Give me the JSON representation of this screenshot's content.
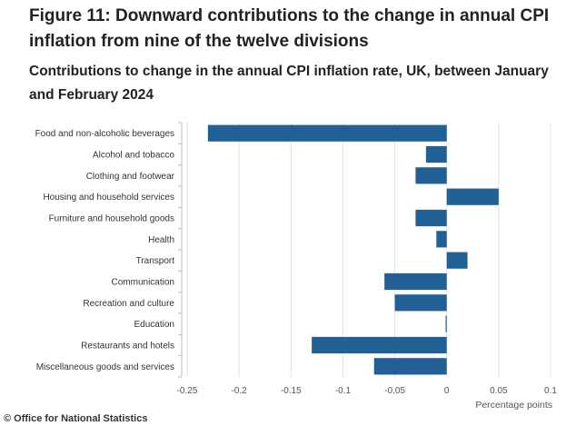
{
  "figure": {
    "title": "Figure 11: Downward contributions to the change in annual CPI inflation from nine of the twelve divisions",
    "credit": "© Office for National Statistics"
  },
  "chart_data": {
    "type": "bar",
    "orientation": "horizontal",
    "title": "Contributions to change in the annual CPI inflation rate, UK, between January and February 2024",
    "xlabel": "Percentage points",
    "ylabel": "",
    "xlim": [
      -0.25,
      0.1
    ],
    "x_ticks": [
      "-0.25",
      "-0.2",
      "-0.15",
      "-0.1",
      "-0.05",
      "0",
      "0.05",
      "0.1"
    ],
    "x_tick_values": [
      -0.25,
      -0.2,
      -0.15,
      -0.1,
      -0.05,
      0,
      0.05,
      0.1
    ],
    "grid": true,
    "bar_color": "#206095",
    "categories": [
      "Food and non-alcoholic beverages",
      "Alcohol and tobacco",
      "Clothing and footwear",
      "Housing and household services",
      "Furniture and household goods",
      "Health",
      "Transport",
      "Communication",
      "Recreation and culture",
      "Education",
      "Restaurants and hotels",
      "Miscellaneous goods and services"
    ],
    "values": [
      -0.23,
      -0.02,
      -0.03,
      0.05,
      -0.03,
      -0.01,
      0.02,
      -0.06,
      -0.05,
      -0.001,
      -0.13,
      -0.07
    ]
  }
}
